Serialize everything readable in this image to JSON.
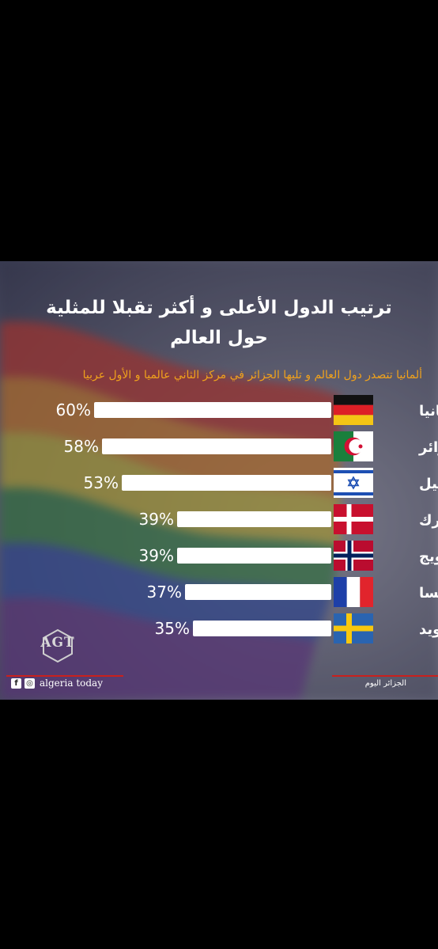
{
  "header": {
    "title_line1": "ترتيب الدول الأعلى و أكثر تقبلا للمثلية",
    "title_line2": "حول العالم",
    "subtitle": "ألمانيا تتصدر دول العالم و تليها الجزائر في مركز الثاني عالميا و الأول عربيا"
  },
  "footer": {
    "brand": "algeria today",
    "brand_arabic": "الجزائر اليوم",
    "logo_text": "AGT"
  },
  "colors": {
    "bar": "#ffffff",
    "text": "#ffffff",
    "subtitle": "#f0a21c",
    "accent_line": "#c9201d"
  },
  "chart_data": {
    "type": "bar",
    "orientation": "horizontal",
    "categories": [
      "ألمانيا",
      "الجزائر",
      "إسرائيل",
      "الدانمارك",
      "النرويج",
      "فرنسا",
      "السويد"
    ],
    "values": [
      60,
      58,
      53,
      39,
      39,
      37,
      35
    ],
    "value_labels": [
      "60%",
      "58%",
      "53%",
      "39%",
      "39%",
      "37%",
      "35%"
    ],
    "flags": [
      "germany-flag",
      "algeria-flag",
      "israel-flag",
      "denmark-flag",
      "norway-flag",
      "france-flag",
      "sweden-flag"
    ],
    "title": "ترتيب الدول الأعلى و أكثر تقبلا للمثلية حول العالم",
    "xlim": [
      0,
      60
    ]
  }
}
